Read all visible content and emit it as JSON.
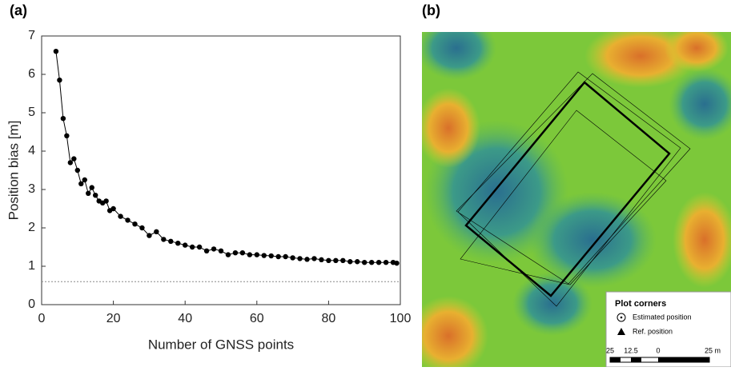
{
  "chart_data": {
    "type": "scatter",
    "panel_label": "(a)",
    "x_label": "Number of GNSS points",
    "y_label": "Position bias [m]",
    "xlim": [
      0,
      100
    ],
    "ylim": [
      0,
      7
    ],
    "xticks": [
      0,
      20,
      40,
      60,
      80,
      100
    ],
    "yticks": [
      0,
      1,
      2,
      3,
      4,
      5,
      6,
      7
    ],
    "reference_line": 0.6,
    "series": [
      {
        "color": "#000000",
        "x": [
          4,
          5,
          6,
          7,
          8,
          9,
          10,
          11,
          12,
          13,
          14,
          15,
          16,
          17,
          18,
          19,
          20,
          22,
          24,
          26,
          28,
          30,
          32,
          34,
          36,
          38,
          40,
          42,
          44,
          46,
          48,
          50,
          52,
          54,
          56,
          58,
          60,
          62,
          64,
          66,
          68,
          70,
          72,
          74,
          76,
          78,
          80,
          82,
          84,
          86,
          88,
          90,
          92,
          94,
          96,
          98,
          99
        ],
        "values": [
          6.6,
          5.85,
          4.85,
          4.4,
          3.7,
          3.8,
          3.5,
          3.15,
          3.25,
          2.9,
          3.05,
          2.85,
          2.7,
          2.65,
          2.7,
          2.45,
          2.5,
          2.3,
          2.2,
          2.1,
          2.0,
          1.8,
          1.9,
          1.7,
          1.65,
          1.6,
          1.55,
          1.5,
          1.5,
          1.4,
          1.45,
          1.4,
          1.3,
          1.35,
          1.35,
          1.3,
          1.3,
          1.28,
          1.27,
          1.25,
          1.25,
          1.22,
          1.2,
          1.18,
          1.2,
          1.17,
          1.15,
          1.15,
          1.15,
          1.12,
          1.12,
          1.1,
          1.1,
          1.1,
          1.1,
          1.1,
          1.08
        ]
      }
    ]
  },
  "map": {
    "panel_label": "(b)",
    "legend_title": "Plot corners",
    "estimated": "Estimated position",
    "reference": "Ref. position",
    "scale_labels": [
      "25",
      "12.5",
      "0",
      "25 m"
    ]
  }
}
